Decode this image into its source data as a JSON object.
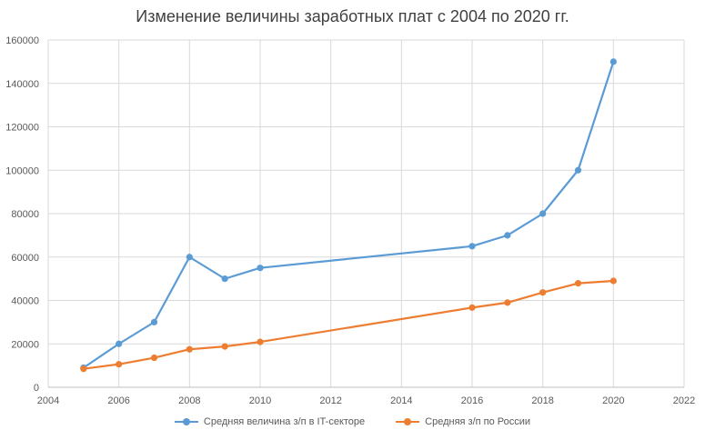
{
  "chart_data": {
    "type": "line",
    "title": "Изменение величины заработных плат с 2004 по 2020 гг.",
    "xlabel": "",
    "ylabel": "",
    "xlim": [
      2004,
      2022
    ],
    "ylim": [
      0,
      160000
    ],
    "x_ticks": [
      "2004",
      "2006",
      "2008",
      "2010",
      "2012",
      "2014",
      "2016",
      "2018",
      "2020",
      "2022"
    ],
    "y_ticks": [
      "0",
      "20000",
      "40000",
      "60000",
      "80000",
      "100000",
      "120000",
      "140000",
      "160000"
    ],
    "grid": true,
    "legend_position": "bottom",
    "series": [
      {
        "name": "Средняя величина з/п в IT-секторе",
        "color": "#5B9BD5",
        "points": [
          [
            2005,
            9000
          ],
          [
            2006,
            20000
          ],
          [
            2007,
            30000
          ],
          [
            2008,
            60000
          ],
          [
            2009,
            50000
          ],
          [
            2010,
            55000
          ],
          [
            2016,
            65000
          ],
          [
            2017,
            70000
          ],
          [
            2018,
            80000
          ],
          [
            2019,
            100000
          ],
          [
            2020,
            150000
          ]
        ]
      },
      {
        "name": "Средняя  з/п по России",
        "color": "#ED7D31",
        "points": [
          [
            2005,
            8500
          ],
          [
            2006,
            10600
          ],
          [
            2007,
            13600
          ],
          [
            2008,
            17500
          ],
          [
            2009,
            18800
          ],
          [
            2010,
            20900
          ],
          [
            2016,
            36700
          ],
          [
            2017,
            39000
          ],
          [
            2018,
            43700
          ],
          [
            2019,
            47900
          ],
          [
            2020,
            49000
          ]
        ]
      }
    ]
  }
}
